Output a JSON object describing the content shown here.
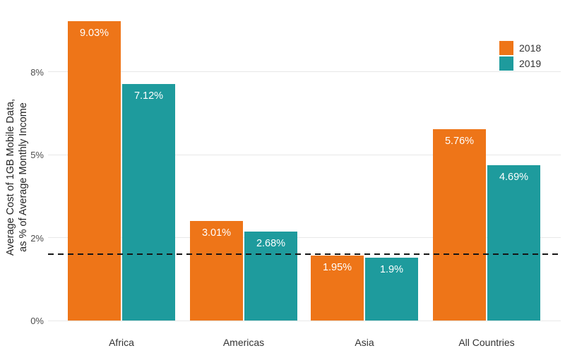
{
  "chart_data": {
    "type": "bar",
    "title": "",
    "categories": [
      "Africa",
      "Americas",
      "Asia",
      "All Countries"
    ],
    "series": [
      {
        "name": "2018",
        "color": "#EE7518",
        "values": [
          9.03,
          3.01,
          1.95,
          5.76
        ],
        "labels": [
          "9.03%",
          "3.01%",
          "1.95%",
          "5.76%"
        ]
      },
      {
        "name": "2019",
        "color": "#1E9B9D",
        "values": [
          7.12,
          2.68,
          1.9,
          4.69
        ],
        "labels": [
          "7.12%",
          "2.68%",
          "1.9%",
          "4.69%"
        ]
      }
    ],
    "ylabel_line1": "Average Cost of 1GB Mobile Data,",
    "ylabel_line2": "as % of Average Monthly Income",
    "xlabel": "",
    "y_ticks": [
      {
        "label": "0%",
        "value": 0
      },
      {
        "label": "2%",
        "value": 2.5
      },
      {
        "label": "5%",
        "value": 5
      },
      {
        "label": "8%",
        "value": 7.5
      }
    ],
    "ylim": [
      0,
      9.66
    ],
    "grid": "horizontal",
    "background": "#ffffff",
    "reference_line": {
      "value": 2.0,
      "style": "dashed",
      "color": "#161616"
    },
    "legend": {
      "position": "top-right",
      "entries": [
        "2018",
        "2019"
      ]
    },
    "value_label_color": "#ffffff"
  }
}
